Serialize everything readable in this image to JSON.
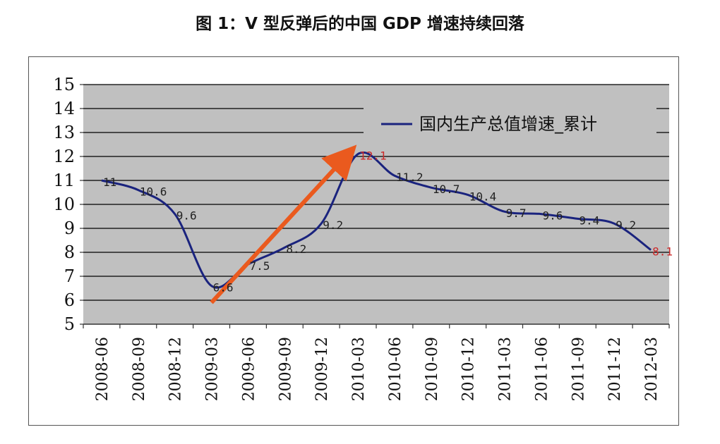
{
  "title": "图 1：V 型反弹后的中国 GDP 增速持续回落",
  "colors": {
    "plot_bg": "#c0c0c0",
    "grid": "#000000",
    "line": "#1a237e",
    "arrow": "#ea5a1e",
    "label_default": "#222222",
    "label_highlight": "#cc2a2a"
  },
  "chart_data": {
    "type": "line",
    "title": "图 1：V 型反弹后的中国 GDP 增速持续回落",
    "categories": [
      "2008-06",
      "2008-09",
      "2008-12",
      "2009-03",
      "2009-06",
      "2009-09",
      "2009-12",
      "2010-03",
      "2010-06",
      "2010-09",
      "2010-12",
      "2011-03",
      "2011-06",
      "2011-09",
      "2011-12",
      "2012-03"
    ],
    "series": [
      {
        "name": "国内生产总值增速_累计",
        "values": [
          11,
          10.6,
          9.6,
          6.6,
          7.5,
          8.2,
          9.2,
          12.1,
          11.2,
          10.7,
          10.4,
          9.7,
          9.6,
          9.4,
          9.2,
          8.1
        ]
      }
    ],
    "data_labels": [
      "11",
      "10.6",
      "9.6",
      "6.6",
      "7.5",
      "8.2",
      "9.2",
      "12.1",
      "11.2",
      "10.7",
      "10.4",
      "9.7",
      "9.6",
      "9.4",
      "9.2",
      "8.1"
    ],
    "highlight_labels": [
      "12.1",
      "8.1"
    ],
    "ylim": [
      5,
      15
    ],
    "yticks": [
      5,
      6,
      7,
      8,
      9,
      10,
      11,
      12,
      13,
      14,
      15
    ],
    "grid": "horizontal",
    "legend": "top-right",
    "arrow": {
      "from": {
        "x": "2009-03",
        "y": 5.9
      },
      "to": {
        "x": "2010-03",
        "y": 12.5
      }
    }
  }
}
